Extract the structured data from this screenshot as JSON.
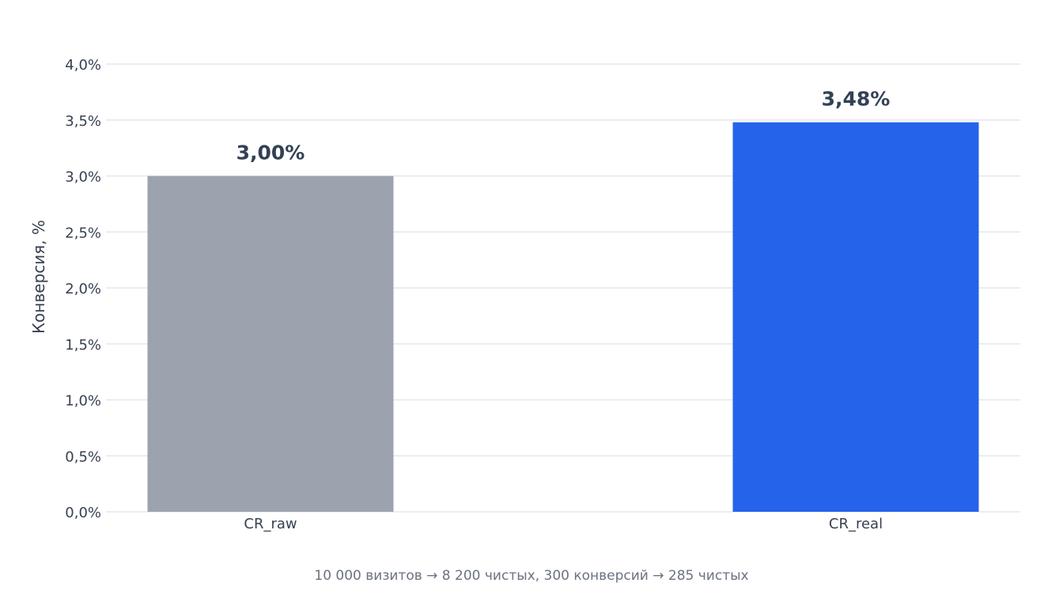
{
  "chart_data": {
    "type": "bar",
    "categories": [
      "CR_raw",
      "CR_real"
    ],
    "values": [
      3.0,
      3.48
    ],
    "value_labels": [
      "3,00%",
      "3,48%"
    ],
    "bar_colors": [
      "#9ca3af",
      "#2563eb"
    ],
    "ylabel": "Конверсия, %",
    "xlabel": "",
    "ylim": [
      0,
      4.0
    ],
    "yticks": [
      {
        "value": 0.0,
        "label": "0,0%"
      },
      {
        "value": 0.5,
        "label": "0,5%"
      },
      {
        "value": 1.0,
        "label": "1,0%"
      },
      {
        "value": 1.5,
        "label": "1,5%"
      },
      {
        "value": 2.0,
        "label": "2,0%"
      },
      {
        "value": 2.5,
        "label": "2,5%"
      },
      {
        "value": 3.0,
        "label": "3,0%"
      },
      {
        "value": 3.5,
        "label": "3,5%"
      },
      {
        "value": 4.0,
        "label": "4,0%"
      }
    ],
    "grid": true,
    "footnote": "10 000 визитов → 8 200 чистых, 300 конверсий → 285 чистых"
  }
}
